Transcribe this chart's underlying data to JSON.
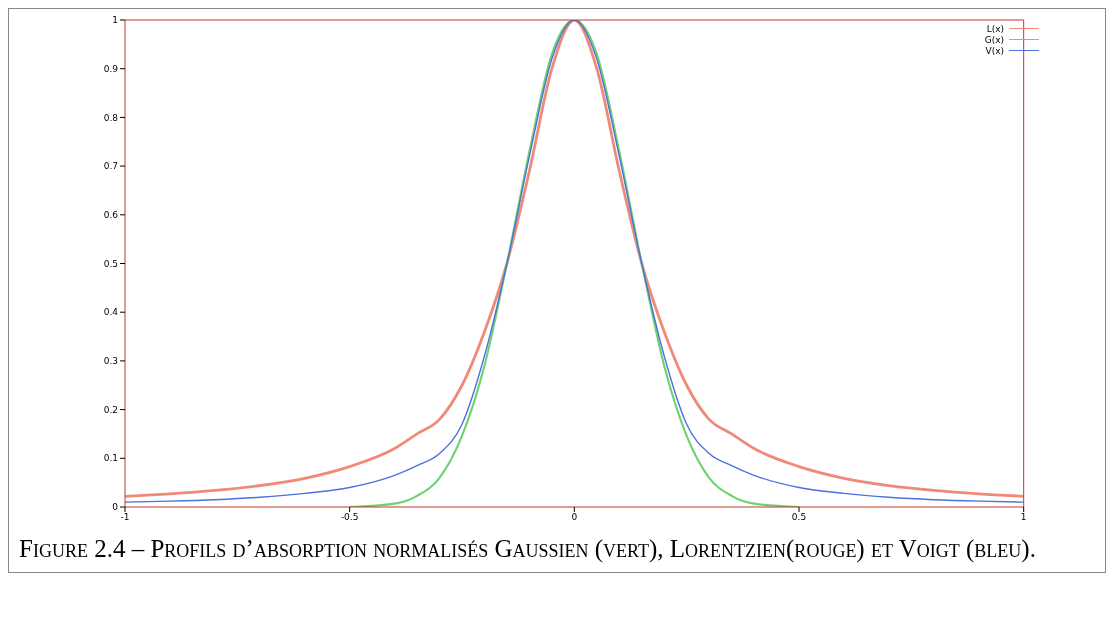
{
  "chart_data": {
    "type": "line",
    "x": [
      -1,
      -0.9,
      -0.8,
      -0.7,
      -0.6,
      -0.5,
      -0.4,
      -0.35,
      -0.3,
      -0.25,
      -0.2,
      -0.15,
      -0.1,
      -0.05,
      0,
      0.05,
      0.1,
      0.15,
      0.2,
      0.25,
      0.3,
      0.35,
      0.4,
      0.5,
      0.6,
      0.7,
      0.8,
      0.9,
      1
    ],
    "series": [
      {
        "name": "L(x)",
        "color": "#f08a78",
        "values": [
          0.022,
          0.027,
          0.034,
          0.044,
          0.059,
          0.083,
          0.12,
          0.15,
          0.18,
          0.25,
          0.36,
          0.5,
          0.69,
          0.9,
          1,
          0.9,
          0.69,
          0.5,
          0.36,
          0.25,
          0.18,
          0.15,
          0.12,
          0.083,
          0.059,
          0.044,
          0.034,
          0.027,
          0.022
        ]
      },
      {
        "name": "G(x)",
        "color": "#6fd06f",
        "values": [
          null,
          null,
          null,
          null,
          null,
          0,
          0.007,
          0.023,
          0.06,
          0.146,
          0.29,
          0.5,
          0.73,
          0.93,
          1,
          0.93,
          0.73,
          0.5,
          0.29,
          0.146,
          0.06,
          0.023,
          0.007,
          0,
          null,
          null,
          null,
          null,
          null
        ]
      },
      {
        "name": "V(x)",
        "color": "#4a72e0",
        "values": [
          0.01,
          0.012,
          0.015,
          0.02,
          0.028,
          0.04,
          0.065,
          0.085,
          0.11,
          0.17,
          0.31,
          0.5,
          0.72,
          0.92,
          1,
          0.92,
          0.72,
          0.5,
          0.31,
          0.17,
          0.11,
          0.085,
          0.065,
          0.04,
          0.028,
          0.02,
          0.015,
          0.012,
          0.01
        ]
      }
    ],
    "xlim": [
      -1,
      1
    ],
    "xticks": [
      -1,
      -0.5,
      0,
      0.5,
      1
    ],
    "ylim": [
      0,
      1
    ],
    "yticks": [
      0,
      0.1,
      0.2,
      0.3,
      0.4,
      0.5,
      0.6,
      0.7,
      0.8,
      0.9,
      1
    ],
    "grid": false,
    "legend": "top right",
    "marker": "none",
    "line_style": "solid",
    "annotations": [
      "Figure 2.4 – Profils d’absorption normalisés Gaussien (vert), Lorentzien(rouge) et Voigt (bleu)."
    ]
  }
}
